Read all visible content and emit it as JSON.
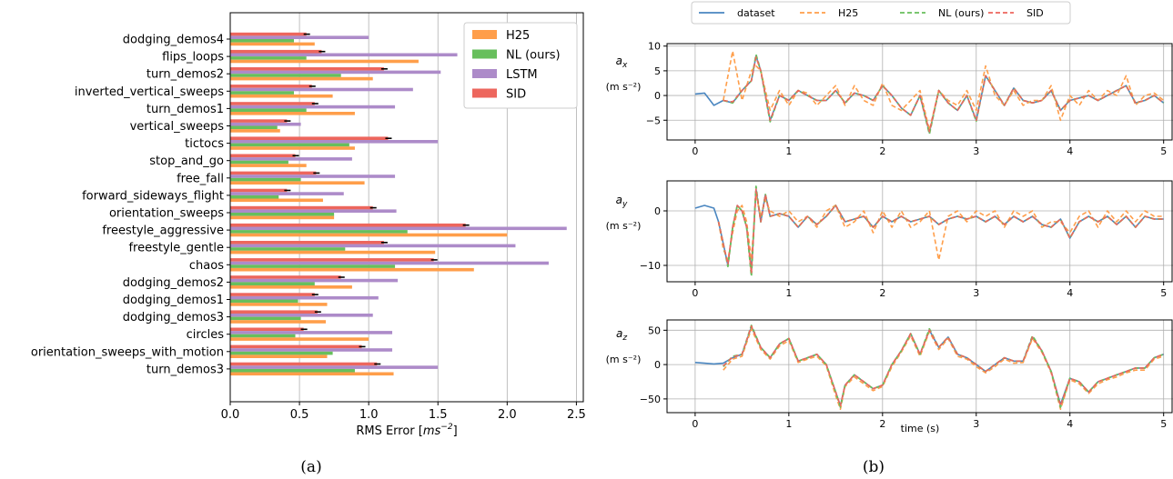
{
  "colors": {
    "H25": "#ff9e4a",
    "NL": "#67bf5c",
    "LSTM": "#ad8bc9",
    "SID": "#ed665d",
    "dataset": "#4a86c0",
    "grid": "#b0b0b0"
  },
  "panel_a": {
    "caption": "(a)",
    "chart_data": {
      "type": "bar",
      "orientation": "horizontal",
      "xlabel": "RMS Error [ms⁻²]",
      "xlabel_parts": {
        "prefix": "RMS Error [",
        "unit": "ms",
        "exp": "−2",
        "suffix": "]"
      },
      "xlim": [
        0,
        2.55
      ],
      "xticks": [
        "0.0",
        "0.5",
        "1.0",
        "1.5",
        "2.0",
        "2.5"
      ],
      "xtick_values": [
        0,
        0.5,
        1.0,
        1.5,
        2.0,
        2.5
      ],
      "grid": true,
      "legend_position": "top-right",
      "categories": [
        "dodging_demos4",
        "flips_loops",
        "turn_demos2",
        "inverted_vertical_sweeps",
        "turn_demos1",
        "vertical_sweeps",
        "tictocs",
        "stop_and_go",
        "free_fall",
        "forward_sideways_flight",
        "orientation_sweeps",
        "freestyle_aggressive",
        "freestyle_gentle",
        "chaos",
        "dodging_demos2",
        "dodging_demos1",
        "dodging_demos3",
        "circles",
        "orientation_sweeps_with_motion",
        "turn_demos3"
      ],
      "series": [
        {
          "name": "H25",
          "key": "H25",
          "values": [
            0.61,
            1.36,
            1.03,
            0.74,
            0.9,
            0.36,
            0.9,
            0.55,
            0.97,
            0.67,
            0.75,
            2.0,
            1.48,
            1.76,
            0.88,
            0.7,
            0.69,
            1.0,
            0.7,
            1.18
          ]
        },
        {
          "name": "NL (ours)",
          "key": "NL",
          "values": [
            0.46,
            0.55,
            0.8,
            0.46,
            0.55,
            0.34,
            0.86,
            0.42,
            0.51,
            0.35,
            0.75,
            1.28,
            0.83,
            1.19,
            0.61,
            0.49,
            0.51,
            0.47,
            0.74,
            0.9
          ]
        },
        {
          "name": "LSTM",
          "key": "LSTM",
          "values": [
            1.0,
            1.64,
            1.52,
            1.32,
            1.19,
            0.51,
            1.5,
            0.88,
            1.19,
            0.82,
            1.2,
            2.43,
            2.06,
            2.3,
            1.21,
            1.07,
            1.03,
            1.17,
            1.17,
            1.5
          ]
        },
        {
          "name": "SID",
          "key": "SID",
          "values": [
            0.55,
            0.66,
            1.11,
            0.59,
            0.61,
            0.41,
            1.14,
            0.47,
            0.62,
            0.41,
            1.03,
            1.7,
            1.11,
            1.47,
            0.8,
            0.61,
            0.63,
            0.53,
            0.95,
            1.06
          ]
        }
      ],
      "legend": [
        "H25",
        "NL (ours)",
        "LSTM",
        "SID"
      ]
    }
  },
  "panel_b": {
    "caption": "(b)",
    "legend": [
      {
        "label": "dataset",
        "key": "dataset",
        "dashed": false
      },
      {
        "label": "H25",
        "key": "H25",
        "dashed": true
      },
      {
        "label": "NL (ours)",
        "key": "NL",
        "dashed": true
      },
      {
        "label": "SID",
        "key": "SID",
        "dashed": true
      }
    ],
    "xlabel": "time (s)",
    "chart_data": [
      {
        "type": "line",
        "ylabel_var": "a",
        "ylabel_sub": "x",
        "ylabel_unit": "(m s⁻²)",
        "xlim": [
          -0.3,
          5.1
        ],
        "ylim": [
          -9,
          10.5
        ],
        "xticks": [
          0,
          1,
          2,
          3,
          4,
          5
        ],
        "yticks": [
          -5,
          0,
          5,
          10
        ],
        "x": [
          0,
          0.1,
          0.2,
          0.3,
          0.4,
          0.5,
          0.6,
          0.65,
          0.7,
          0.8,
          0.9,
          1.0,
          1.1,
          1.2,
          1.3,
          1.4,
          1.5,
          1.6,
          1.7,
          1.8,
          1.9,
          2.0,
          2.1,
          2.2,
          2.3,
          2.4,
          2.5,
          2.6,
          2.7,
          2.8,
          2.9,
          3.0,
          3.1,
          3.2,
          3.3,
          3.4,
          3.5,
          3.6,
          3.7,
          3.8,
          3.9,
          4.0,
          4.1,
          4.2,
          4.3,
          4.4,
          4.5,
          4.6,
          4.7,
          4.8,
          4.9,
          5.0
        ],
        "dataset": [
          0.3,
          0.5,
          -2.0,
          -1.0,
          -1.5,
          1.0,
          3.0,
          8.0,
          5.0,
          -5.0,
          0.0,
          -1.0,
          1.0,
          0.0,
          -1.0,
          -1.0,
          1.0,
          -1.5,
          0.5,
          0.0,
          -1.0,
          2.0,
          0.0,
          -2.5,
          -4.0,
          0.0,
          -7.5,
          1.0,
          -1.5,
          -3.0,
          0.0,
          -5.0,
          4.0,
          1.0,
          -2.0,
          1.5,
          -1.0,
          -1.5,
          -1.0,
          1.0,
          -3.0,
          -1.0,
          -0.5,
          0.0,
          -1.0,
          0.0,
          1.0,
          2.0,
          -1.5,
          -1.0,
          0.0,
          -1.5
        ],
        "NL": [
          null,
          null,
          null,
          -1.0,
          -1.5,
          1.0,
          3.0,
          8.3,
          5.0,
          -5.3,
          0.0,
          -1.0,
          1.0,
          0.0,
          -1.0,
          -1.0,
          1.0,
          -1.5,
          0.5,
          0.0,
          -1.0,
          2.0,
          0.0,
          -2.5,
          -4.0,
          0.0,
          -7.8,
          1.0,
          -1.5,
          -3.0,
          0.0,
          -5.2,
          4.0,
          1.0,
          -2.0,
          1.5,
          -1.0,
          -1.5,
          -1.0,
          1.0,
          -3.0,
          -1.0,
          -0.5,
          0.0,
          -1.0,
          0.0,
          1.0,
          2.0,
          -1.5,
          -1.0,
          0.0,
          -1.5
        ],
        "SID": [
          null,
          null,
          null,
          -1.0,
          -1.3,
          1.0,
          3.0,
          7.8,
          5.0,
          -5.0,
          0.0,
          -1.0,
          1.0,
          0.0,
          -1.0,
          -1.0,
          1.0,
          -1.5,
          0.5,
          0.0,
          -1.0,
          2.0,
          0.0,
          -2.5,
          -4.0,
          0.0,
          -7.3,
          1.0,
          -1.5,
          -3.0,
          0.0,
          -5.0,
          4.0,
          1.0,
          -2.0,
          1.5,
          -1.0,
          -1.5,
          -1.0,
          1.0,
          -3.0,
          -1.0,
          -0.5,
          0.0,
          -1.0,
          0.0,
          1.0,
          2.0,
          -1.5,
          -1.0,
          0.0,
          -1.5
        ],
        "H25": [
          null,
          null,
          null,
          -1.0,
          9.0,
          -1.0,
          5.0,
          6.0,
          5.0,
          -3.0,
          1.0,
          -2.0,
          1.0,
          0.5,
          -2.0,
          0.0,
          2.0,
          -2.0,
          2.0,
          -1.0,
          -2.0,
          2.5,
          -2.0,
          -3.0,
          -1.0,
          1.0,
          -7.0,
          1.0,
          -1.0,
          -2.0,
          1.0,
          -3.0,
          6.0,
          0.0,
          -2.0,
          1.0,
          -2.0,
          -1.0,
          -1.0,
          2.0,
          -5.0,
          0.0,
          -2.0,
          1.0,
          -1.0,
          1.0,
          0.0,
          4.0,
          -2.0,
          0.0,
          0.5,
          -1.0
        ]
      },
      {
        "type": "line",
        "ylabel_var": "a",
        "ylabel_sub": "y",
        "ylabel_unit": "(m s⁻²)",
        "xlim": [
          -0.3,
          5.1
        ],
        "ylim": [
          -13,
          5.5
        ],
        "xticks": [
          0,
          1,
          2,
          3,
          4,
          5
        ],
        "yticks": [
          -10,
          0
        ],
        "x": [
          0,
          0.1,
          0.2,
          0.25,
          0.3,
          0.35,
          0.4,
          0.45,
          0.5,
          0.55,
          0.6,
          0.65,
          0.7,
          0.75,
          0.8,
          0.9,
          1.0,
          1.1,
          1.2,
          1.3,
          1.4,
          1.5,
          1.6,
          1.7,
          1.8,
          1.9,
          2.0,
          2.1,
          2.2,
          2.3,
          2.4,
          2.5,
          2.6,
          2.7,
          2.8,
          2.9,
          3.0,
          3.1,
          3.2,
          3.3,
          3.4,
          3.5,
          3.6,
          3.7,
          3.8,
          3.9,
          4.0,
          4.1,
          4.2,
          4.3,
          4.4,
          4.5,
          4.6,
          4.7,
          4.8,
          4.9,
          5.0
        ],
        "dataset": [
          0.5,
          1.0,
          0.5,
          -2.0,
          -6.0,
          -10.0,
          -3.0,
          1.0,
          0.0,
          -3.0,
          -11.0,
          4.0,
          -2.0,
          3.0,
          -1.0,
          -0.5,
          -1.0,
          -3.0,
          -1.0,
          -2.5,
          -1.0,
          1.0,
          -2.0,
          -1.5,
          -1.0,
          -3.0,
          -1.0,
          -2.0,
          -1.0,
          -2.0,
          -1.5,
          -1.0,
          -2.5,
          -1.5,
          -1.0,
          -1.5,
          -1.0,
          -2.0,
          -1.0,
          -2.5,
          -1.0,
          -2.0,
          -1.0,
          -2.5,
          -3.0,
          -1.5,
          -5.0,
          -2.0,
          -1.0,
          -2.0,
          -1.0,
          -2.5,
          -1.0,
          -3.0,
          -1.0,
          -1.5,
          -1.5
        ],
        "NL": [
          null,
          null,
          null,
          -2.0,
          -6.0,
          -10.2,
          -3.0,
          1.0,
          0.0,
          -3.0,
          -12.0,
          4.5,
          -2.0,
          3.0,
          -1.0,
          -0.5,
          -1.0,
          -3.0,
          -1.0,
          -2.5,
          -1.0,
          1.0,
          -2.0,
          -1.5,
          -1.0,
          -3.0,
          -1.0,
          -2.0,
          -1.0,
          -2.0,
          -1.5,
          -1.0,
          -2.5,
          -1.5,
          -1.0,
          -1.5,
          -1.0,
          -2.0,
          -1.0,
          -2.5,
          -1.0,
          -2.0,
          -1.0,
          -2.5,
          -3.0,
          -1.5,
          -5.0,
          -2.0,
          -1.0,
          -2.0,
          -1.0,
          -2.5,
          -1.0,
          -3.0,
          -1.0,
          -1.5,
          -1.5
        ],
        "SID": [
          null,
          null,
          null,
          -2.0,
          -6.0,
          -9.8,
          -3.0,
          1.0,
          0.0,
          -3.0,
          -11.5,
          4.0,
          -2.0,
          3.0,
          -1.0,
          -0.5,
          -1.0,
          -3.0,
          -1.0,
          -2.5,
          -1.0,
          1.0,
          -2.0,
          -1.5,
          -1.0,
          -3.0,
          -1.0,
          -2.0,
          -1.0,
          -2.0,
          -1.5,
          -1.0,
          -2.5,
          -1.5,
          -1.0,
          -1.5,
          -1.0,
          -2.0,
          -1.0,
          -2.5,
          -1.0,
          -2.0,
          -1.0,
          -2.5,
          -3.0,
          -1.5,
          -5.0,
          -2.0,
          -1.0,
          -2.0,
          -1.0,
          -2.5,
          -1.0,
          -3.0,
          -1.0,
          -1.5,
          -1.5
        ],
        "H25": [
          null,
          null,
          null,
          -2.0,
          -7.0,
          -9.0,
          -4.0,
          0.0,
          1.0,
          -2.0,
          -9.0,
          3.0,
          -1.0,
          2.0,
          0.0,
          -1.0,
          0.0,
          -2.0,
          -1.0,
          -3.0,
          0.0,
          1.0,
          -3.0,
          -2.0,
          0.0,
          -4.0,
          0.0,
          -3.0,
          0.0,
          -3.0,
          -2.0,
          0.0,
          -9.0,
          -1.0,
          0.0,
          -2.0,
          0.0,
          -1.0,
          0.0,
          -3.0,
          0.0,
          -1.0,
          0.0,
          -3.0,
          -2.0,
          -2.0,
          -4.0,
          -1.0,
          0.0,
          -3.0,
          0.0,
          -2.0,
          0.0,
          -2.0,
          0.0,
          -1.0,
          -1.0
        ]
      },
      {
        "type": "line",
        "ylabel_var": "a",
        "ylabel_sub": "z",
        "ylabel_unit": "(m s⁻²)",
        "xlim": [
          -0.3,
          5.1
        ],
        "ylim": [
          -70,
          65
        ],
        "xticks": [
          0,
          1,
          2,
          3,
          4,
          5
        ],
        "yticks": [
          -50,
          0,
          50
        ],
        "x": [
          0,
          0.1,
          0.2,
          0.3,
          0.4,
          0.5,
          0.6,
          0.7,
          0.8,
          0.9,
          1.0,
          1.1,
          1.2,
          1.3,
          1.4,
          1.5,
          1.55,
          1.6,
          1.7,
          1.8,
          1.9,
          2.0,
          2.1,
          2.2,
          2.3,
          2.4,
          2.5,
          2.6,
          2.7,
          2.8,
          2.9,
          3.0,
          3.1,
          3.2,
          3.3,
          3.4,
          3.5,
          3.6,
          3.7,
          3.8,
          3.9,
          4.0,
          4.1,
          4.2,
          4.3,
          4.4,
          4.5,
          4.6,
          4.7,
          4.8,
          4.9,
          5.0
        ],
        "dataset": [
          3.0,
          2.0,
          1.0,
          2.0,
          10.0,
          15.0,
          55.0,
          25.0,
          10.0,
          30.0,
          38.0,
          5.0,
          10.0,
          15.0,
          0.0,
          -40.0,
          -60.0,
          -30.0,
          -15.0,
          -25.0,
          -35.0,
          -30.0,
          0.0,
          20.0,
          45.0,
          15.0,
          50.0,
          25.0,
          40.0,
          15.0,
          10.0,
          0.0,
          -10.0,
          0.0,
          10.0,
          5.0,
          5.0,
          40.0,
          20.0,
          -10.0,
          -58.0,
          -20.0,
          -25.0,
          -40.0,
          -25.0,
          -20.0,
          -15.0,
          -10.0,
          -5.0,
          -5.0,
          10.0,
          15.0
        ],
        "NL": [
          null,
          null,
          null,
          -3.0,
          12.0,
          15.0,
          57.0,
          25.0,
          10.0,
          30.0,
          38.0,
          5.0,
          10.0,
          15.0,
          0.0,
          -40.0,
          -62.0,
          -30.0,
          -15.0,
          -25.0,
          -35.0,
          -30.0,
          0.0,
          20.0,
          45.0,
          15.0,
          52.0,
          25.0,
          40.0,
          15.0,
          10.0,
          0.0,
          -10.0,
          0.0,
          10.0,
          5.0,
          5.0,
          42.0,
          20.0,
          -10.0,
          -62.0,
          -20.0,
          -25.0,
          -40.0,
          -25.0,
          -20.0,
          -15.0,
          -10.0,
          -5.0,
          -5.0,
          10.0,
          15.0
        ],
        "SID": [
          null,
          null,
          null,
          -2.0,
          11.0,
          15.0,
          56.0,
          25.0,
          10.0,
          30.0,
          38.0,
          5.0,
          10.0,
          15.0,
          0.0,
          -40.0,
          -60.0,
          -30.0,
          -15.0,
          -25.0,
          -35.0,
          -30.0,
          0.0,
          20.0,
          45.0,
          15.0,
          50.0,
          25.0,
          40.0,
          15.0,
          10.0,
          0.0,
          -10.0,
          0.0,
          10.0,
          5.0,
          5.0,
          40.0,
          20.0,
          -10.0,
          -60.0,
          -20.0,
          -25.0,
          -40.0,
          -25.0,
          -20.0,
          -15.0,
          -10.0,
          -5.0,
          -5.0,
          10.0,
          15.0
        ],
        "H25": [
          null,
          null,
          null,
          -8.0,
          8.0,
          12.0,
          52.0,
          22.0,
          8.0,
          27.0,
          35.0,
          3.0,
          8.0,
          12.0,
          -2.0,
          -45.0,
          -65.0,
          -32.0,
          -18.0,
          -28.0,
          -38.0,
          -32.0,
          -3.0,
          18.0,
          42.0,
          12.0,
          48.0,
          22.0,
          38.0,
          12.0,
          8.0,
          -3.0,
          -12.0,
          -3.0,
          8.0,
          2.0,
          3.0,
          38.0,
          18.0,
          -12.0,
          -65.0,
          -22.0,
          -28.0,
          -42.0,
          -28.0,
          -22.0,
          -18.0,
          -12.0,
          -8.0,
          -8.0,
          8.0,
          12.0
        ]
      }
    ]
  }
}
